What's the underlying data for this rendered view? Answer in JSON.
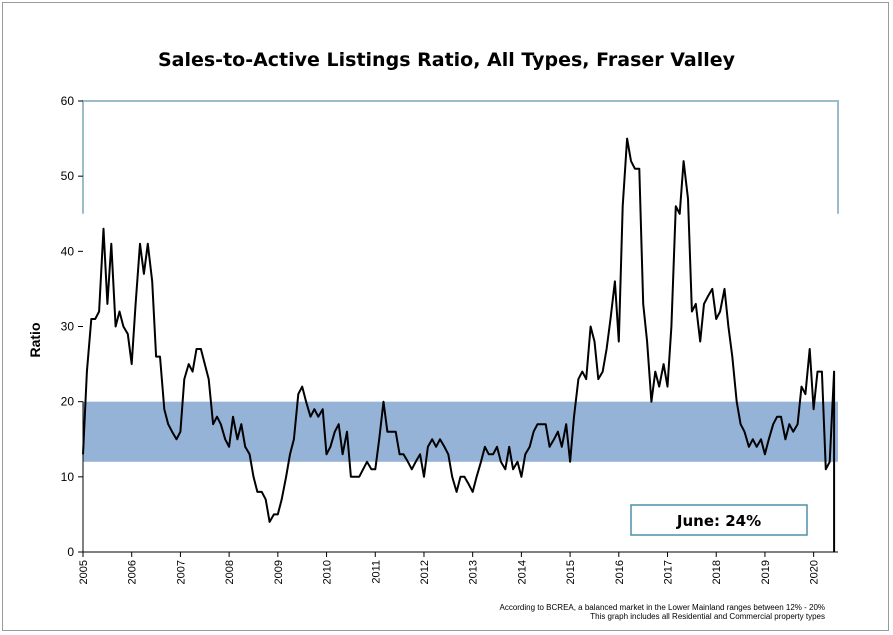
{
  "chart_data": {
    "type": "line",
    "title": "Sales-to-Active Listings Ratio, All Types, Fraser Valley",
    "ylabel": "Ratio",
    "xlabel": "",
    "ylim": [
      0,
      60
    ],
    "xlim": [
      2005,
      2020.5
    ],
    "y_ticks": [
      "0",
      "10",
      "20",
      "30",
      "40",
      "50",
      "60"
    ],
    "x_ticks": [
      "2005",
      "2006",
      "2007",
      "2008",
      "2009",
      "2010",
      "2011",
      "2012",
      "2013",
      "2014",
      "2015",
      "2016",
      "2017",
      "2018",
      "2019",
      "2020"
    ],
    "balanced_band": [
      12,
      20
    ],
    "grid": false,
    "annotation": "June: 24%",
    "footnotes": [
      "According to BCREA, a balanced market in the Lower Mainland ranges between 12% - 20%",
      "This graph includes all Residential and Commercial property types"
    ],
    "colors": {
      "line": "#000000",
      "band": "#95b3d7",
      "frame": "#9cbccb",
      "annotation_border": "#4a8fa8"
    },
    "series": [
      {
        "values": [
          [
            2005.0,
            13
          ],
          [
            2005.08,
            24
          ],
          [
            2005.17,
            31
          ],
          [
            2005.25,
            31
          ],
          [
            2005.33,
            32
          ],
          [
            2005.42,
            43
          ],
          [
            2005.5,
            33
          ],
          [
            2005.58,
            41
          ],
          [
            2005.67,
            30
          ],
          [
            2005.75,
            32
          ],
          [
            2005.83,
            30
          ],
          [
            2005.92,
            29
          ],
          [
            2006.0,
            25
          ],
          [
            2006.08,
            33
          ],
          [
            2006.17,
            41
          ],
          [
            2006.25,
            37
          ],
          [
            2006.33,
            41
          ],
          [
            2006.42,
            36
          ],
          [
            2006.5,
            26
          ],
          [
            2006.58,
            26
          ],
          [
            2006.67,
            19
          ],
          [
            2006.75,
            17
          ],
          [
            2006.83,
            16
          ],
          [
            2006.92,
            15
          ],
          [
            2007.0,
            16
          ],
          [
            2007.08,
            23
          ],
          [
            2007.17,
            25
          ],
          [
            2007.25,
            24
          ],
          [
            2007.33,
            27
          ],
          [
            2007.42,
            27
          ],
          [
            2007.5,
            25
          ],
          [
            2007.58,
            23
          ],
          [
            2007.67,
            17
          ],
          [
            2007.75,
            18
          ],
          [
            2007.83,
            17
          ],
          [
            2007.92,
            15
          ],
          [
            2008.0,
            14
          ],
          [
            2008.08,
            18
          ],
          [
            2008.17,
            15
          ],
          [
            2008.25,
            17
          ],
          [
            2008.33,
            14
          ],
          [
            2008.42,
            13
          ],
          [
            2008.5,
            10
          ],
          [
            2008.58,
            8
          ],
          [
            2008.67,
            8
          ],
          [
            2008.75,
            7
          ],
          [
            2008.83,
            4
          ],
          [
            2008.92,
            5
          ],
          [
            2009.0,
            5
          ],
          [
            2009.08,
            7
          ],
          [
            2009.17,
            10
          ],
          [
            2009.25,
            13
          ],
          [
            2009.33,
            15
          ],
          [
            2009.42,
            21
          ],
          [
            2009.5,
            22
          ],
          [
            2009.58,
            20
          ],
          [
            2009.67,
            18
          ],
          [
            2009.75,
            19
          ],
          [
            2009.83,
            18
          ],
          [
            2009.92,
            19
          ],
          [
            2010.0,
            13
          ],
          [
            2010.08,
            14
          ],
          [
            2010.17,
            16
          ],
          [
            2010.25,
            17
          ],
          [
            2010.33,
            13
          ],
          [
            2010.42,
            16
          ],
          [
            2010.5,
            10
          ],
          [
            2010.58,
            10
          ],
          [
            2010.67,
            10
          ],
          [
            2010.75,
            11
          ],
          [
            2010.83,
            12
          ],
          [
            2010.92,
            11
          ],
          [
            2011.0,
            11
          ],
          [
            2011.08,
            15
          ],
          [
            2011.17,
            20
          ],
          [
            2011.25,
            16
          ],
          [
            2011.33,
            16
          ],
          [
            2011.42,
            16
          ],
          [
            2011.5,
            13
          ],
          [
            2011.58,
            13
          ],
          [
            2011.67,
            12
          ],
          [
            2011.75,
            11
          ],
          [
            2011.83,
            12
          ],
          [
            2011.92,
            13
          ],
          [
            2012.0,
            10
          ],
          [
            2012.08,
            14
          ],
          [
            2012.17,
            15
          ],
          [
            2012.25,
            14
          ],
          [
            2012.33,
            15
          ],
          [
            2012.42,
            14
          ],
          [
            2012.5,
            13
          ],
          [
            2012.58,
            10
          ],
          [
            2012.67,
            8
          ],
          [
            2012.75,
            10
          ],
          [
            2012.83,
            10
          ],
          [
            2012.92,
            9
          ],
          [
            2013.0,
            8
          ],
          [
            2013.08,
            10
          ],
          [
            2013.17,
            12
          ],
          [
            2013.25,
            14
          ],
          [
            2013.33,
            13
          ],
          [
            2013.42,
            13
          ],
          [
            2013.5,
            14
          ],
          [
            2013.58,
            12
          ],
          [
            2013.67,
            11
          ],
          [
            2013.75,
            14
          ],
          [
            2013.83,
            11
          ],
          [
            2013.92,
            12
          ],
          [
            2014.0,
            10
          ],
          [
            2014.08,
            13
          ],
          [
            2014.17,
            14
          ],
          [
            2014.25,
            16
          ],
          [
            2014.33,
            17
          ],
          [
            2014.42,
            17
          ],
          [
            2014.5,
            17
          ],
          [
            2014.58,
            14
          ],
          [
            2014.67,
            15
          ],
          [
            2014.75,
            16
          ],
          [
            2014.83,
            14
          ],
          [
            2014.92,
            17
          ],
          [
            2015.0,
            12
          ],
          [
            2015.08,
            18
          ],
          [
            2015.17,
            23
          ],
          [
            2015.25,
            24
          ],
          [
            2015.33,
            23
          ],
          [
            2015.42,
            30
          ],
          [
            2015.5,
            28
          ],
          [
            2015.58,
            23
          ],
          [
            2015.67,
            24
          ],
          [
            2015.75,
            27
          ],
          [
            2015.83,
            31
          ],
          [
            2015.92,
            36
          ],
          [
            2016.0,
            28
          ],
          [
            2016.08,
            46
          ],
          [
            2016.17,
            55
          ],
          [
            2016.25,
            52
          ],
          [
            2016.33,
            51
          ],
          [
            2016.42,
            51
          ],
          [
            2016.5,
            33
          ],
          [
            2016.58,
            28
          ],
          [
            2016.67,
            20
          ],
          [
            2016.75,
            24
          ],
          [
            2016.83,
            22
          ],
          [
            2016.92,
            25
          ],
          [
            2017.0,
            22
          ],
          [
            2017.08,
            30
          ],
          [
            2017.17,
            46
          ],
          [
            2017.25,
            45
          ],
          [
            2017.33,
            52
          ],
          [
            2017.42,
            47
          ],
          [
            2017.5,
            32
          ],
          [
            2017.58,
            33
          ],
          [
            2017.67,
            28
          ],
          [
            2017.75,
            33
          ],
          [
            2017.83,
            34
          ],
          [
            2017.92,
            35
          ],
          [
            2018.0,
            31
          ],
          [
            2018.08,
            32
          ],
          [
            2018.17,
            35
          ],
          [
            2018.25,
            30
          ],
          [
            2018.33,
            26
          ],
          [
            2018.42,
            20
          ],
          [
            2018.5,
            17
          ],
          [
            2018.58,
            16
          ],
          [
            2018.67,
            14
          ],
          [
            2018.75,
            15
          ],
          [
            2018.83,
            14
          ],
          [
            2018.92,
            15
          ],
          [
            2019.0,
            13
          ],
          [
            2019.08,
            15
          ],
          [
            2019.17,
            17
          ],
          [
            2019.25,
            18
          ],
          [
            2019.33,
            18
          ],
          [
            2019.42,
            15
          ],
          [
            2019.5,
            17
          ],
          [
            2019.58,
            16
          ],
          [
            2019.67,
            17
          ],
          [
            2019.75,
            22
          ],
          [
            2019.83,
            21
          ],
          [
            2019.92,
            27
          ],
          [
            2020.0,
            19
          ],
          [
            2020.08,
            24
          ],
          [
            2020.17,
            24
          ],
          [
            2020.25,
            11
          ],
          [
            2020.33,
            12
          ],
          [
            2020.42,
            24
          ]
        ]
      }
    ]
  }
}
